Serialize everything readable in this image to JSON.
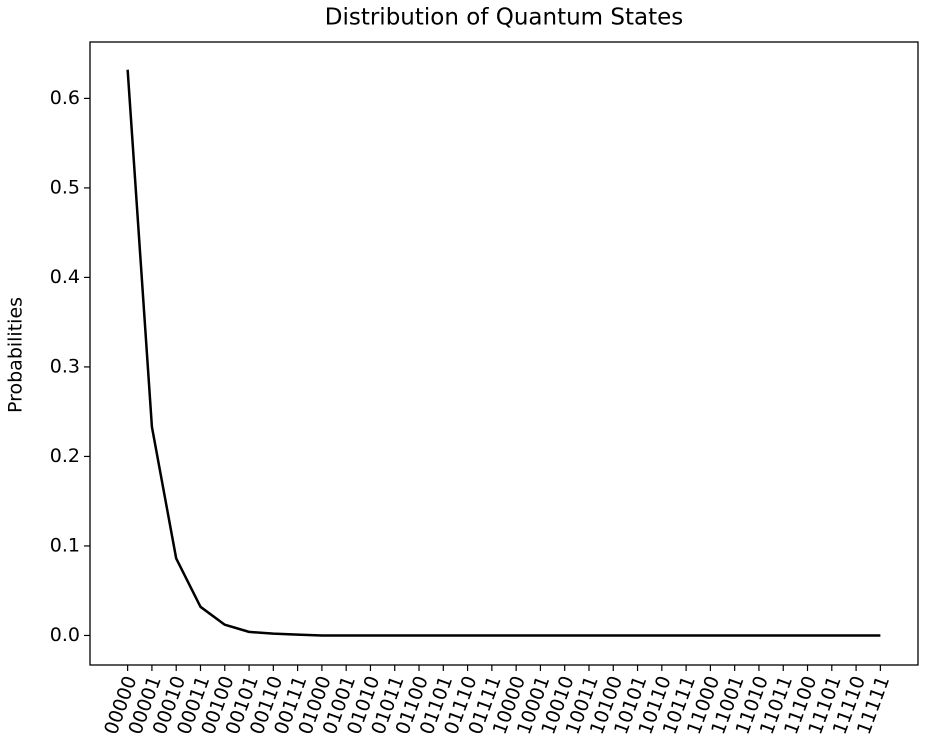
{
  "chart_data": {
    "type": "line",
    "title": "Distribution of Quantum States",
    "y_label": "Probabilities",
    "categories": [
      "00000",
      "00001",
      "00010",
      "00011",
      "00100",
      "00101",
      "00110",
      "00111",
      "01000",
      "01001",
      "01010",
      "01011",
      "01100",
      "01101",
      "01110",
      "01111",
      "10000",
      "10001",
      "10010",
      "10011",
      "10100",
      "10101",
      "10110",
      "10111",
      "11000",
      "11001",
      "11010",
      "11011",
      "11100",
      "11101",
      "11110",
      "11111"
    ],
    "values": [
      0.632,
      0.233,
      0.086,
      0.032,
      0.012,
      0.004,
      0.002,
      0.001,
      0,
      0,
      0,
      0,
      0,
      0,
      0,
      0,
      0,
      0,
      0,
      0,
      0,
      0,
      0,
      0,
      0,
      0,
      0,
      0,
      0,
      0,
      0,
      0
    ],
    "color": "#000000",
    "ylim": [
      -0.033,
      0.663
    ],
    "yticks": [
      {
        "value": 0,
        "label": "0.0"
      },
      0.1,
      0.2,
      0.3,
      0.4,
      0.5,
      0.6
    ],
    "grid": false
  }
}
